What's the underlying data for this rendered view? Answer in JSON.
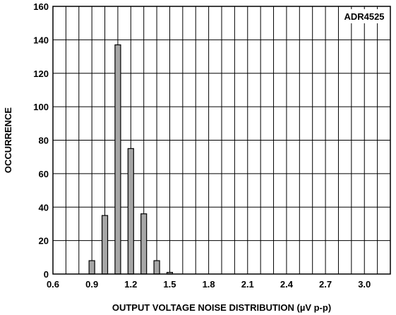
{
  "chart_data": {
    "type": "bar",
    "xlabel": "OUTPUT VOLTAGE NOISE DISTRIBUTION (µV p-p)",
    "ylabel": "OCCURRENCE",
    "xlim": [
      0.6,
      3.2
    ],
    "ylim": [
      0,
      160
    ],
    "xticks": [
      "0.6",
      "0.9",
      "1.2",
      "1.5",
      "1.8",
      "2.1",
      "2.4",
      "2.7",
      "3.0"
    ],
    "xtick_values": [
      0.6,
      0.9,
      1.2,
      1.5,
      1.8,
      2.1,
      2.4,
      2.7,
      3.0
    ],
    "yticks": [
      "0",
      "20",
      "40",
      "60",
      "80",
      "100",
      "120",
      "140",
      "160"
    ],
    "ytick_values": [
      0,
      20,
      40,
      60,
      80,
      100,
      120,
      140,
      160
    ],
    "grid": true,
    "legend": {
      "text": "ADR4525",
      "placement": "top-right"
    },
    "x": [
      0.9,
      1.0,
      1.1,
      1.2,
      1.3,
      1.4,
      1.5
    ],
    "values": [
      8,
      35,
      137,
      75,
      36,
      8,
      1
    ],
    "bar_color": "#a6a6a6"
  }
}
